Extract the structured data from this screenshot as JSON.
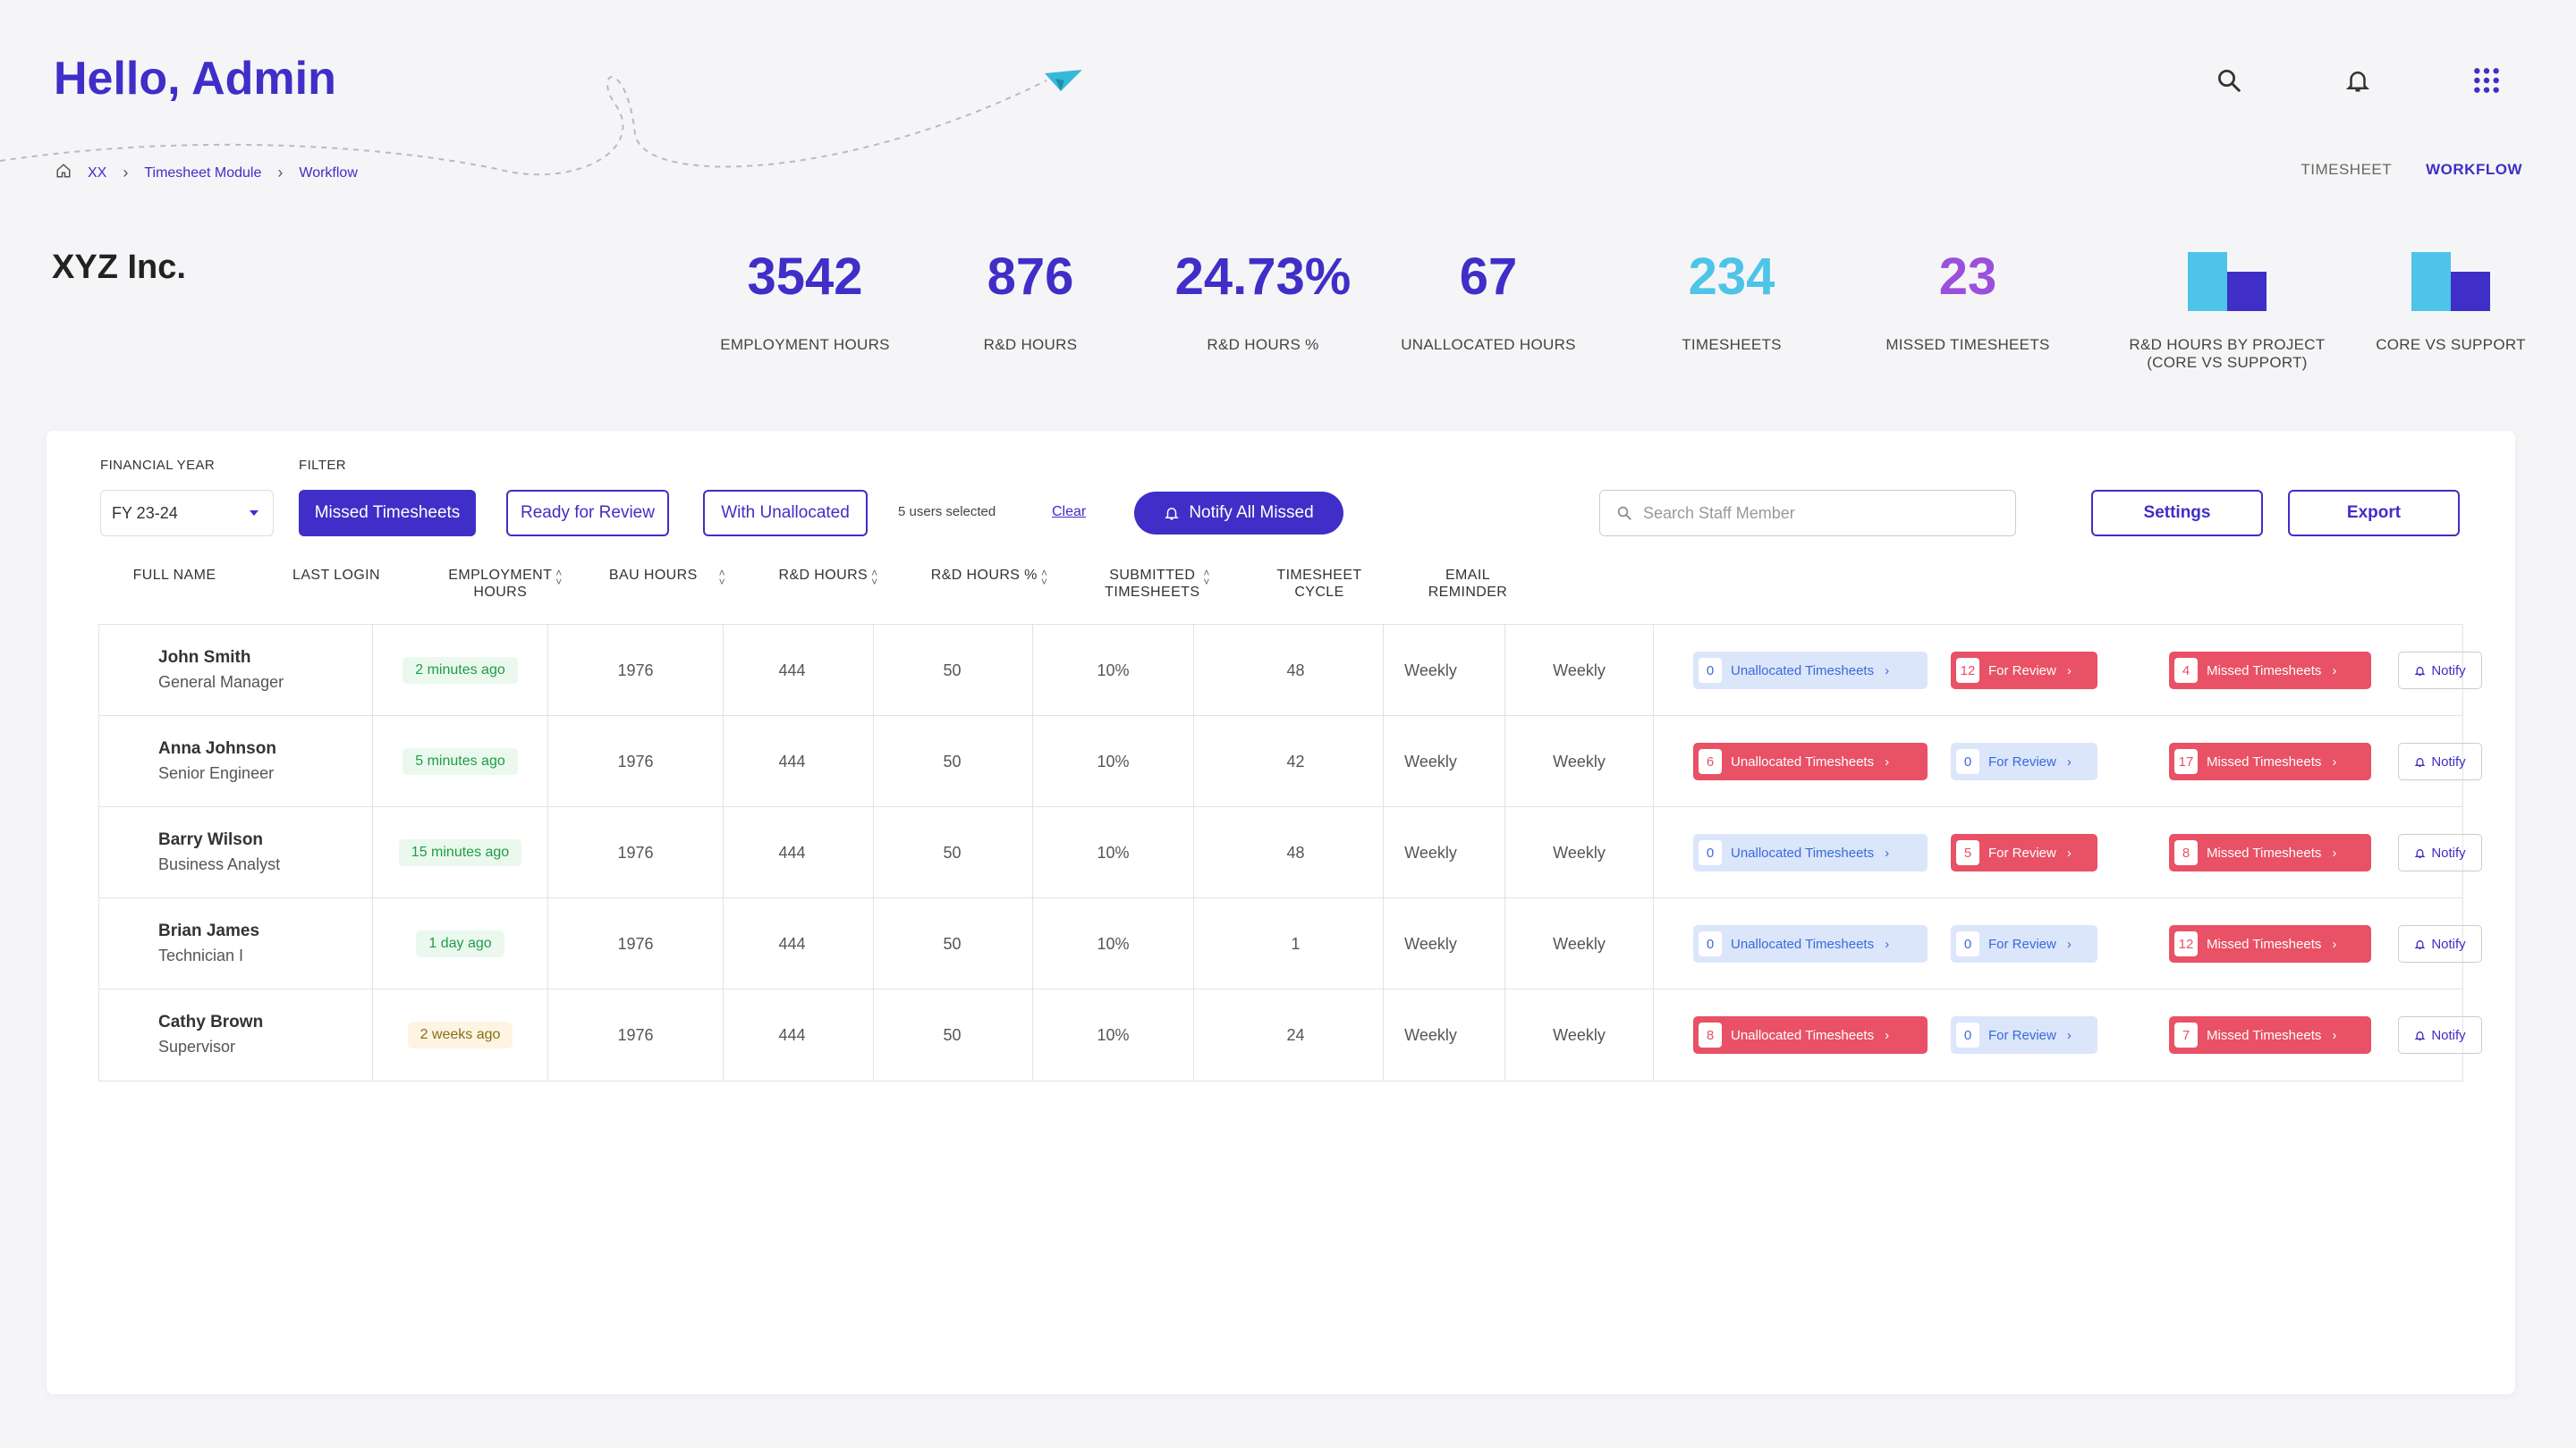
{
  "header": {
    "greeting": "Hello, Admin",
    "breadcrumb": [
      "XX",
      "Timesheet Module",
      "Workflow"
    ],
    "tabs": [
      "TIMESHEET",
      "WORKFLOW"
    ],
    "icons": [
      "search-icon",
      "bell-icon",
      "apps-grid-icon"
    ]
  },
  "company": "XYZ Inc.",
  "stats": [
    {
      "value": "3542",
      "label": "EMPLOYMENT HOURS",
      "color": "#3f2ec7"
    },
    {
      "value": "876",
      "label": "R&D HOURS",
      "color": "#3f2ec7"
    },
    {
      "value": "24.73%",
      "label": "R&D HOURS %",
      "color": "#3f2ec7"
    },
    {
      "value": "67",
      "label": "UNALLOCATED HOURS",
      "color": "#3f2ec7"
    },
    {
      "value": "234",
      "label": "TIMESHEETS",
      "color": "#4dc4e8"
    },
    {
      "value": "23",
      "label": "MISSED TIMESHEETS",
      "color": "#9b4fdc"
    }
  ],
  "mini_charts": [
    {
      "label": "R&D HOURS  BY PROJECT (CORE VS SUPPORT)",
      "colors": [
        "#4dc4e8",
        "#3f2ec7"
      ]
    },
    {
      "label": "CORE VS SUPPORT",
      "colors": [
        "#4dc4e8",
        "#3f2ec7"
      ]
    }
  ],
  "toolbar": {
    "fy_label": "FINANCIAL YEAR",
    "fy_value": "FY 23-24",
    "filter_label": "FILTER",
    "filters": [
      "Missed Timesheets",
      "Ready for Review",
      "With Unallocated"
    ],
    "selected_count": "5 users selected",
    "clear": "Clear",
    "notify_all": "Notify All Missed",
    "search_placeholder": "Search Staff Member",
    "settings": "Settings",
    "export": "Export"
  },
  "columns": {
    "full_name": "FULL NAME",
    "last_login": "LAST LOGIN",
    "employment_hours_1": "EMPLOYMENT",
    "employment_hours_2": "HOURS",
    "bau_hours": "BAU HOURS",
    "rd_hours": "R&D HOURS",
    "rd_hours_pct": "R&D HOURS %",
    "submitted_1": "SUBMITTED",
    "submitted_2": "TIMESHEETS",
    "cycle_1": "TIMESHEET",
    "cycle_2": "CYCLE",
    "reminder_1": "EMAIL",
    "reminder_2": "REMINDER"
  },
  "pill_labels": {
    "unallocated": "Unallocated Timesheets",
    "review": "For Review",
    "missed": "Missed Timesheets",
    "notify": "Notify"
  },
  "rows": [
    {
      "name": "John Smith",
      "role": "General Manager",
      "login": "2 minutes ago",
      "login_tone": "green",
      "employment": "1976",
      "bau": "444",
      "rd": "50",
      "rd_pct": "10%",
      "submitted": "48",
      "cycle": "Weekly",
      "reminder": "Weekly",
      "unallocated": "0",
      "review": "12",
      "missed": "4"
    },
    {
      "name": "Anna Johnson",
      "role": "Senior Engineer",
      "login": "5 minutes ago",
      "login_tone": "green",
      "employment": "1976",
      "bau": "444",
      "rd": "50",
      "rd_pct": "10%",
      "submitted": "42",
      "cycle": "Weekly",
      "reminder": "Weekly",
      "unallocated": "6",
      "review": "0",
      "missed": "17"
    },
    {
      "name": "Barry Wilson",
      "role": "Business Analyst",
      "login": "15 minutes ago",
      "login_tone": "green",
      "employment": "1976",
      "bau": "444",
      "rd": "50",
      "rd_pct": "10%",
      "submitted": "48",
      "cycle": "Weekly",
      "reminder": "Weekly",
      "unallocated": "0",
      "review": "5",
      "missed": "8"
    },
    {
      "name": "Brian James",
      "role": "Technician I",
      "login": "1 day ago",
      "login_tone": "green",
      "employment": "1976",
      "bau": "444",
      "rd": "50",
      "rd_pct": "10%",
      "submitted": "1",
      "cycle": "Weekly",
      "reminder": "Weekly",
      "unallocated": "0",
      "review": "0",
      "missed": "12"
    },
    {
      "name": "Cathy Brown",
      "role": "Supervisor",
      "login": "2 weeks ago",
      "login_tone": "yellow",
      "employment": "1976",
      "bau": "444",
      "rd": "50",
      "rd_pct": "10%",
      "submitted": "24",
      "cycle": "Weekly",
      "reminder": "Weekly",
      "unallocated": "8",
      "review": "0",
      "missed": "7"
    }
  ]
}
